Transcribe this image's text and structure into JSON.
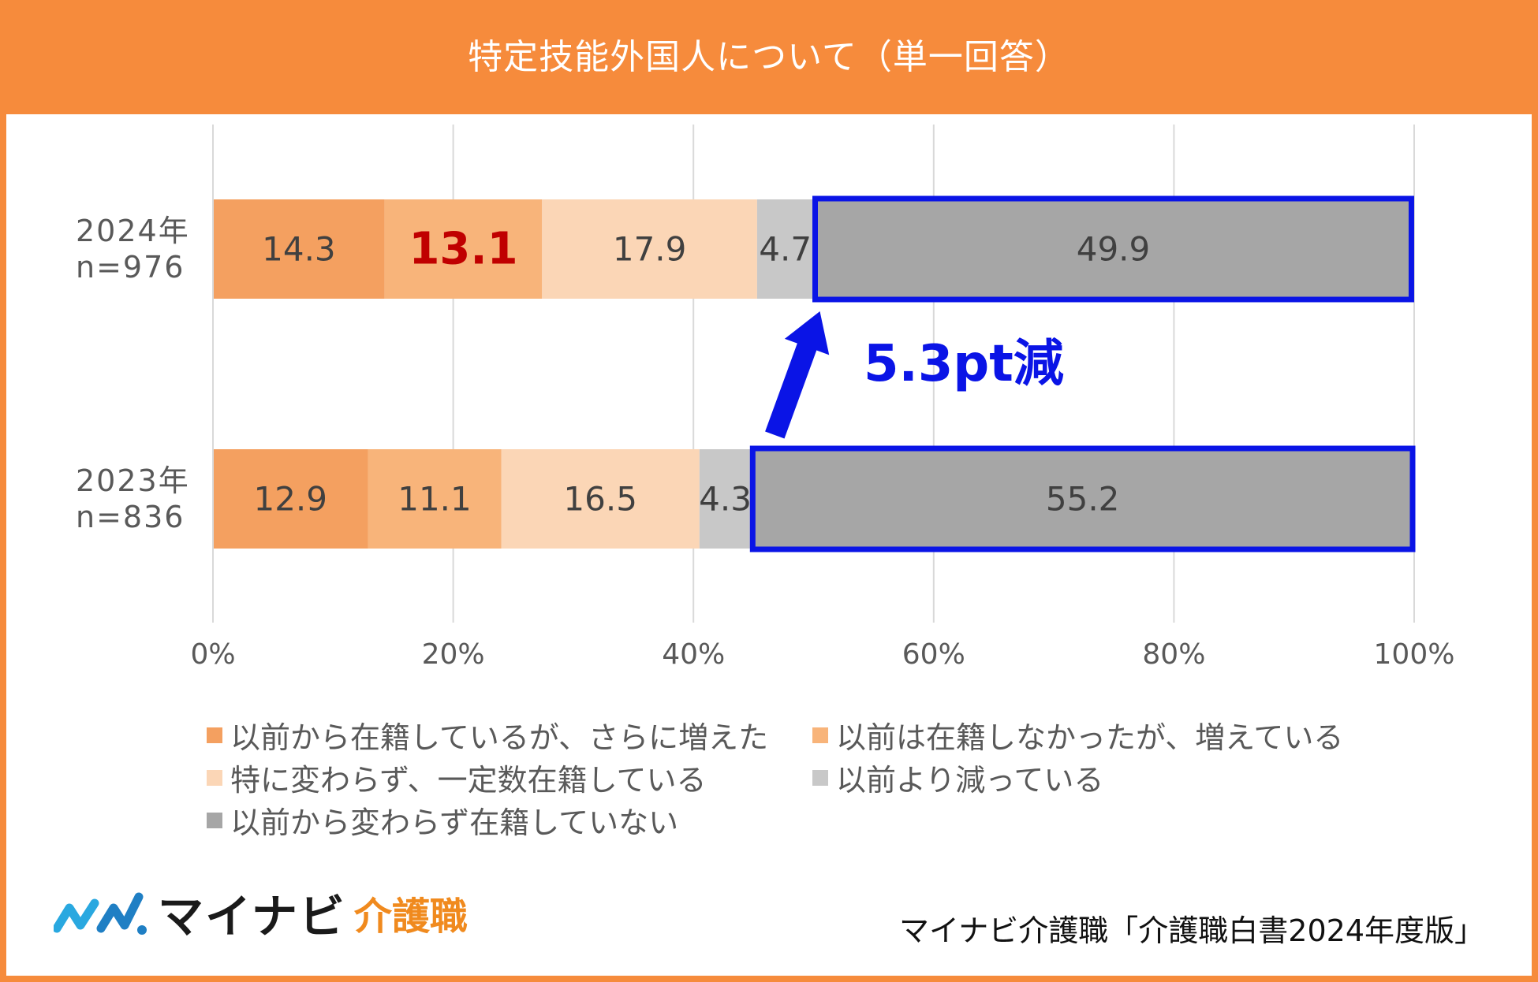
{
  "title": "特定技能外国人について（単一回答）",
  "chart_data": {
    "type": "bar",
    "orientation": "horizontal-stacked-100",
    "categories": [
      {
        "year": "2024年",
        "n": "n=976"
      },
      {
        "year": "2023年",
        "n": "n=836"
      }
    ],
    "series": [
      {
        "name": "以前から在籍しているが、さらに増えた",
        "color": "#F4A060",
        "values": [
          14.3,
          12.9
        ]
      },
      {
        "name": "以前は在籍しなかったが、増えている",
        "color": "#F8B47A",
        "values": [
          13.1,
          11.1
        ]
      },
      {
        "name": "特に変わらず、一定数在籍している",
        "color": "#FBD6B6",
        "values": [
          17.9,
          16.5
        ]
      },
      {
        "name": "以前より減っている",
        "color": "#C8C8C8",
        "values": [
          4.7,
          4.3
        ]
      },
      {
        "name": "以前から変わらず在籍していない",
        "color": "#A6A6A6",
        "values": [
          49.9,
          55.2
        ]
      }
    ],
    "value_labels": [
      [
        "14.3",
        "13.1",
        "17.9",
        "4.7",
        "49.9"
      ],
      [
        "12.9",
        "11.1",
        "16.5",
        "4.3",
        "55.2"
      ]
    ],
    "highlight_label": {
      "category_index": 0,
      "series_index": 1,
      "color": "#C00000"
    },
    "highlight_boxes": [
      {
        "category_index": 0,
        "series_index": 4,
        "color": "#0A14E6"
      },
      {
        "category_index": 1,
        "series_index": 4,
        "color": "#0A14E6"
      }
    ],
    "annotation": {
      "text": "5.3pt減",
      "color": "#0A14E6"
    },
    "x_ticks": [
      "0%",
      "20%",
      "40%",
      "60%",
      "80%",
      "100%"
    ],
    "xlim": [
      0,
      100
    ],
    "grid": true,
    "legend_position": "bottom"
  },
  "logo": {
    "brand": "マイナビ",
    "sub": "介護職"
  },
  "source": "マイナビ介護職「介護職白書2024年度版」"
}
